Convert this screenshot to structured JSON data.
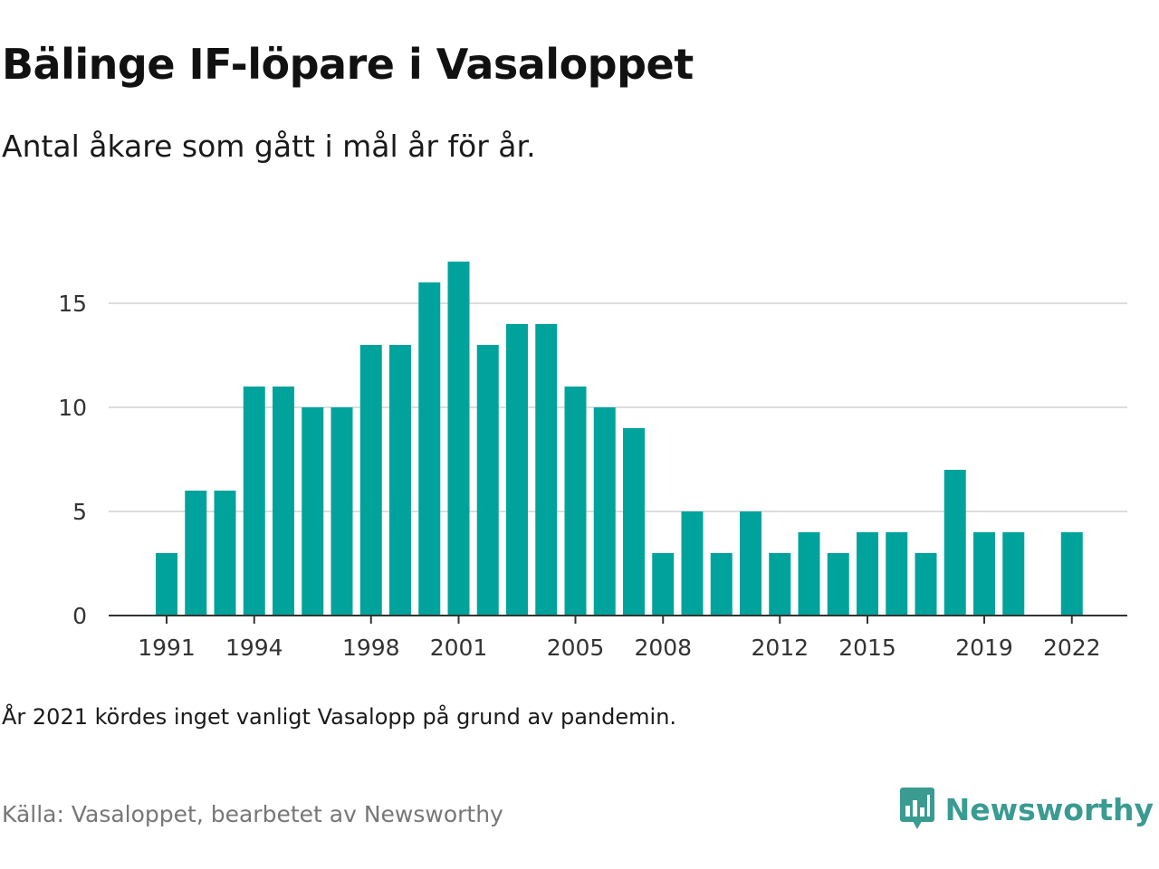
{
  "title": "Bälinge IF-löpare i Vasaloppet",
  "subtitle": "Antal åkare som gått i mål år för år.",
  "note": "År 2021 kördes inget vanligt Vasalopp på grund av pandemin.",
  "source": "Källa: Vasaloppet, bearbetet av Newsworthy",
  "brand": {
    "label": "Newsworthy",
    "icon": "newsworthy-logo-icon"
  },
  "colors": {
    "bar": "#00a39b",
    "brand": "#3a9b91",
    "grid": "#dddddd",
    "axis": "#333333"
  },
  "chart_data": {
    "type": "bar",
    "x": [
      1991,
      1992,
      1993,
      1994,
      1995,
      1996,
      1997,
      1998,
      1999,
      2000,
      2001,
      2002,
      2003,
      2004,
      2005,
      2006,
      2007,
      2008,
      2009,
      2010,
      2011,
      2012,
      2013,
      2014,
      2015,
      2016,
      2017,
      2018,
      2019,
      2020,
      2021,
      2022
    ],
    "values": [
      3,
      6,
      6,
      11,
      11,
      10,
      10,
      13,
      13,
      16,
      17,
      13,
      14,
      14,
      11,
      10,
      9,
      3,
      5,
      3,
      5,
      3,
      4,
      3,
      4,
      4,
      3,
      7,
      4,
      4,
      null,
      4
    ],
    "x_ticks": [
      "1991",
      "1994",
      "1998",
      "2001",
      "2005",
      "2008",
      "2012",
      "2015",
      "2019",
      "2022"
    ],
    "y_ticks": [
      "0",
      "5",
      "10",
      "15"
    ],
    "ylim": [
      0,
      17
    ],
    "grid": true,
    "xlabel": "",
    "ylabel": ""
  }
}
